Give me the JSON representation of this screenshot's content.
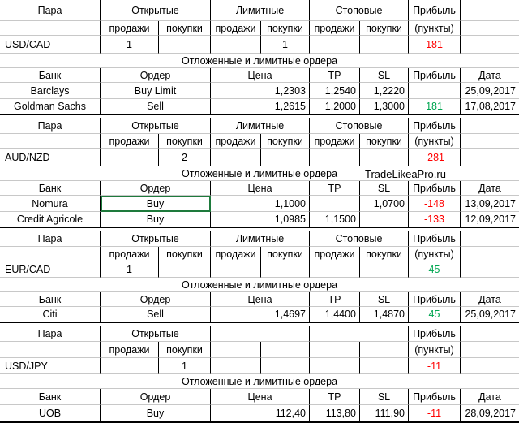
{
  "headers": {
    "pair": "Пара",
    "open": "Открытые",
    "limit": "Лимитные",
    "stop": "Стоповые",
    "profit": "Прибыль",
    "sell": "продажи",
    "buy": "покупки",
    "points": "(пункты)",
    "pending": "Отложенные и лимитные ордера",
    "bank": "Банк",
    "order": "Ордер",
    "price": "Цена",
    "tp": "TP",
    "sl": "SL",
    "date": "Дата"
  },
  "watermark": "TradeLikeaPro.ru",
  "blocks": [
    {
      "pair": "USD/CAD",
      "open_sell": "1",
      "open_buy": "",
      "limit_sell": "",
      "limit_buy": "1",
      "stop_sell": "",
      "stop_buy": "",
      "profit": "181",
      "profit_color": "#ff0000",
      "orders": [
        {
          "bank": "Barclays",
          "order": "Buy Limit",
          "price": "1,2303",
          "tp": "1,2540",
          "sl": "1,2220",
          "profit": "",
          "date": "25,09,2017"
        },
        {
          "bank": "Goldman Sachs",
          "order": "Sell",
          "price": "1,2615",
          "tp": "1,2000",
          "sl": "1,3000",
          "profit": "181",
          "profit_color": "#00a651",
          "date": "17,08,2017"
        }
      ]
    },
    {
      "pair": "AUD/NZD",
      "open_sell": "",
      "open_buy": "2",
      "limit_sell": "",
      "limit_buy": "",
      "stop_sell": "",
      "stop_buy": "",
      "profit": "-281",
      "profit_color": "#ff0000",
      "orders": [
        {
          "bank": "Nomura",
          "order": "Buy",
          "price": "1,1000",
          "tp": "",
          "sl": "1,0700",
          "profit": "-148",
          "profit_color": "#ff0000",
          "date": "13,09,2017"
        },
        {
          "bank": "Credit Agricole",
          "order": "Buy",
          "price": "1,0985",
          "tp": "1,1500",
          "sl": "",
          "profit": "-133",
          "profit_color": "#ff0000",
          "date": "12,09,2017"
        }
      ]
    },
    {
      "pair": "EUR/CAD",
      "open_sell": "1",
      "open_buy": "",
      "limit_sell": "",
      "limit_buy": "",
      "stop_sell": "",
      "stop_buy": "",
      "profit": "45",
      "profit_color": "#00a651",
      "orders": [
        {
          "bank": "Citi",
          "order": "Sell",
          "price": "1,4697",
          "tp": "1,4400",
          "sl": "1,4870",
          "profit": "45",
          "profit_color": "#00a651",
          "date": "25,09,2017"
        }
      ]
    },
    {
      "pair": "USD/JPY",
      "open_sell": "",
      "open_buy": "1",
      "limit_sell": "",
      "limit_buy": "",
      "stop_sell": "",
      "stop_buy": "",
      "profit": "-11",
      "profit_color": "#ff0000",
      "orders": [
        {
          "bank": "UOB",
          "order": "Buy",
          "price": "112,40",
          "tp": "113,80",
          "sl": "111,90",
          "profit": "-11",
          "profit_color": "#ff0000",
          "date": "28,09,2017"
        }
      ]
    }
  ]
}
